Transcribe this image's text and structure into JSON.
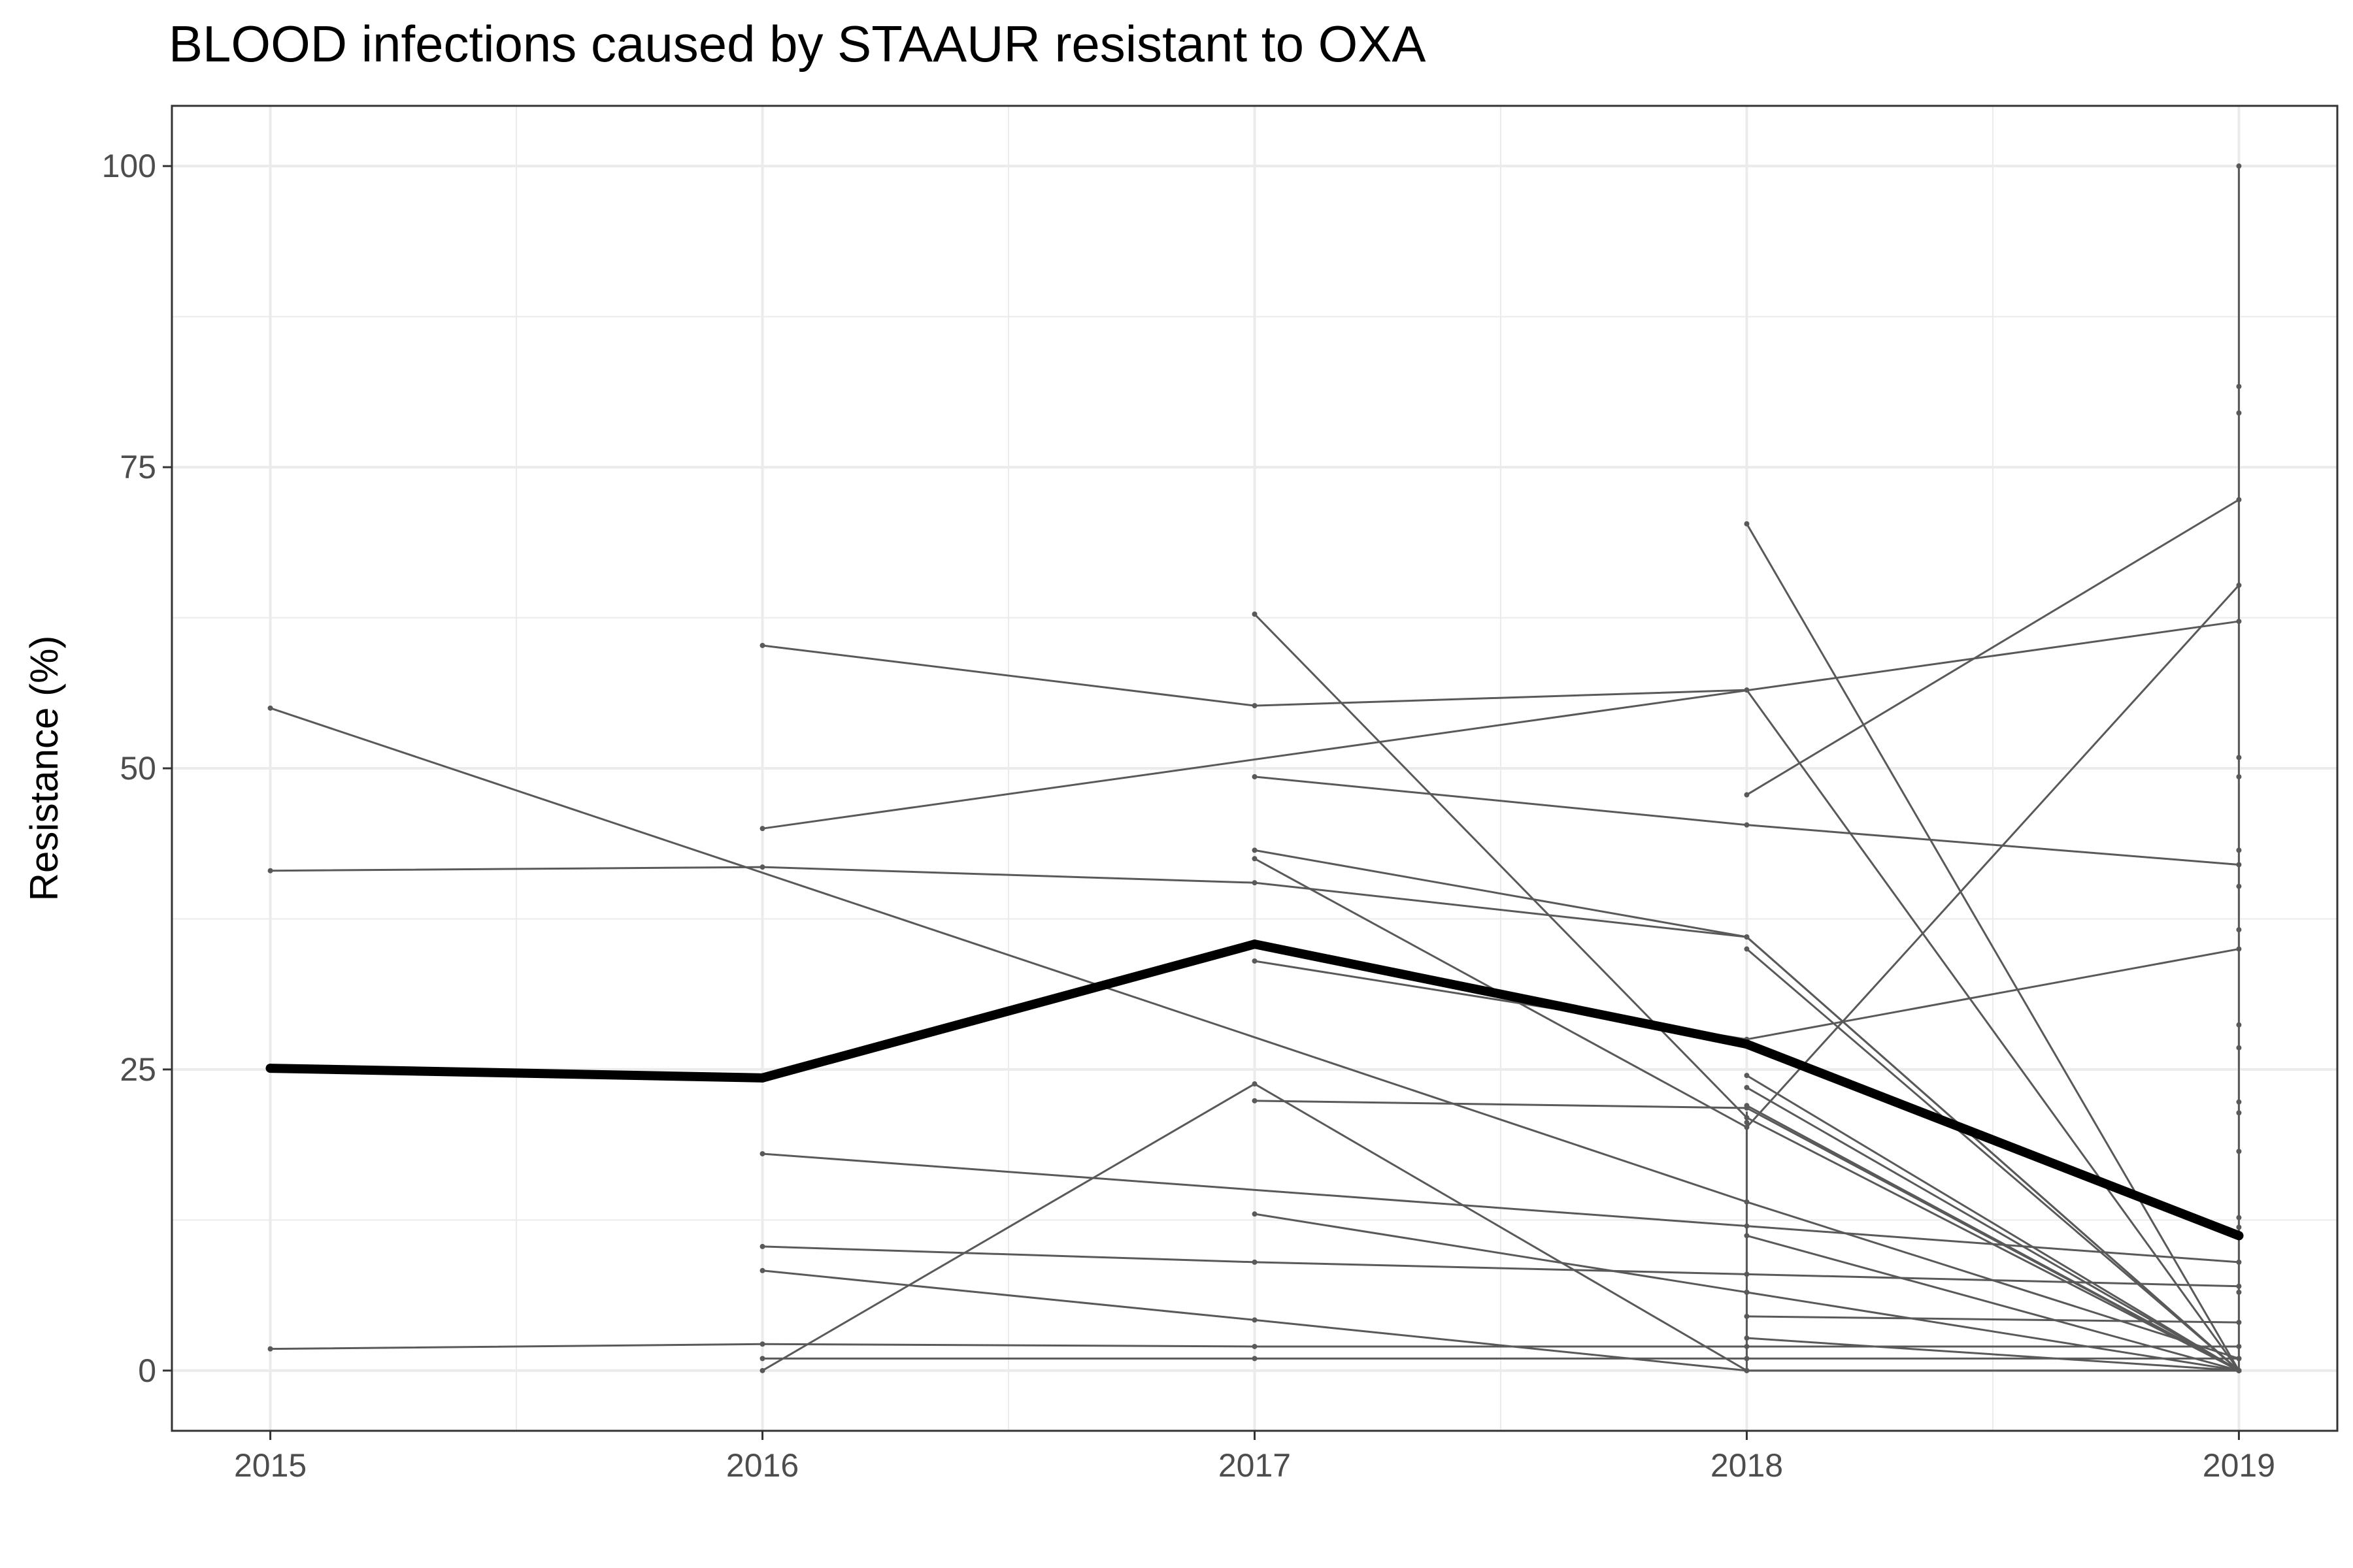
{
  "chart_data": {
    "type": "line",
    "title": "BLOOD infections caused by STAAUR resistant to OXA",
    "xlabel": "",
    "ylabel": "Resistance (%)",
    "x": [
      2015,
      2016,
      2017,
      2018,
      2019
    ],
    "xlim": [
      2014.8,
      2019.2
    ],
    "ylim": [
      -5,
      105
    ],
    "y_ticks": [
      0,
      25,
      50,
      75,
      100
    ],
    "grid": true,
    "legend": "none",
    "colors": {
      "mean": "#000000",
      "units": "#595959",
      "grid": "#ebebeb",
      "frame": "#333333"
    },
    "mean_series": {
      "name": "",
      "values": [
        25.1,
        24.3,
        35.4,
        27.1,
        11.2
      ]
    },
    "unit_series": [
      {
        "values": [
          55.0,
          null,
          null,
          14.0,
          1.0
        ]
      },
      {
        "values": [
          41.5,
          41.8,
          40.5,
          36.0,
          0.0
        ]
      },
      {
        "values": [
          1.8,
          2.2,
          2.0,
          2.0,
          2.0
        ]
      },
      {
        "values": [
          null,
          60.2,
          55.2,
          56.5,
          0.0
        ]
      },
      {
        "values": [
          null,
          45.0,
          null,
          null,
          62.2
        ]
      },
      {
        "values": [
          null,
          18.0,
          null,
          12.0,
          9.0
        ]
      },
      {
        "values": [
          null,
          10.3,
          9.0,
          8.0,
          7.0
        ]
      },
      {
        "values": [
          null,
          8.3,
          4.2,
          0.0,
          0.0
        ]
      },
      {
        "values": [
          null,
          0.0,
          23.8,
          0.0,
          0.0
        ]
      },
      {
        "values": [
          null,
          1.0,
          1.0,
          1.0,
          1.0
        ]
      },
      {
        "values": [
          null,
          null,
          62.8,
          21.0,
          0.0
        ]
      },
      {
        "values": [
          null,
          null,
          49.3,
          45.3,
          42.0
        ]
      },
      {
        "values": [
          null,
          null,
          43.2,
          36.0,
          0.0
        ]
      },
      {
        "values": [
          null,
          null,
          42.5,
          20.2,
          65.2
        ]
      },
      {
        "values": [
          null,
          null,
          34.0,
          27.5,
          35.0
        ]
      },
      {
        "values": [
          null,
          null,
          22.4,
          21.8,
          0.0
        ]
      },
      {
        "values": [
          null,
          null,
          13.0,
          6.5,
          0.0
        ]
      },
      {
        "values": [
          null,
          null,
          null,
          70.3,
          0.0
        ]
      },
      {
        "values": [
          null,
          null,
          null,
          47.8,
          72.3
        ]
      },
      {
        "values": [
          null,
          null,
          null,
          35.0,
          0.0
        ]
      },
      {
        "values": [
          null,
          null,
          null,
          24.5,
          0.0
        ]
      },
      {
        "values": [
          null,
          null,
          null,
          23.5,
          0.0
        ]
      },
      {
        "values": [
          null,
          null,
          null,
          22.0,
          0.0
        ]
      },
      {
        "values": [
          null,
          null,
          null,
          11.2,
          0.0
        ]
      },
      {
        "values": [
          null,
          null,
          null,
          4.5,
          4.0
        ]
      },
      {
        "values": [
          null,
          null,
          null,
          2.7,
          0.0
        ]
      }
    ],
    "isolated_points": [
      {
        "x": 2019,
        "y": 100
      },
      {
        "x": 2019,
        "y": 81.7
      },
      {
        "x": 2019,
        "y": 79.5
      },
      {
        "x": 2019,
        "y": 50.9
      },
      {
        "x": 2019,
        "y": 49.3
      },
      {
        "x": 2019,
        "y": 43.2
      },
      {
        "x": 2019,
        "y": 40.2
      },
      {
        "x": 2019,
        "y": 36.6
      },
      {
        "x": 2019,
        "y": 28.7
      },
      {
        "x": 2019,
        "y": 26.8
      },
      {
        "x": 2019,
        "y": 22.3
      },
      {
        "x": 2019,
        "y": 21.4
      },
      {
        "x": 2019,
        "y": 18.2
      },
      {
        "x": 2019,
        "y": 12.7
      },
      {
        "x": 2019,
        "y": 11.9
      },
      {
        "x": 2019,
        "y": 6.5
      },
      {
        "x": 2018,
        "y": 20.6
      },
      {
        "x": 2018,
        "y": 6.5
      }
    ]
  }
}
